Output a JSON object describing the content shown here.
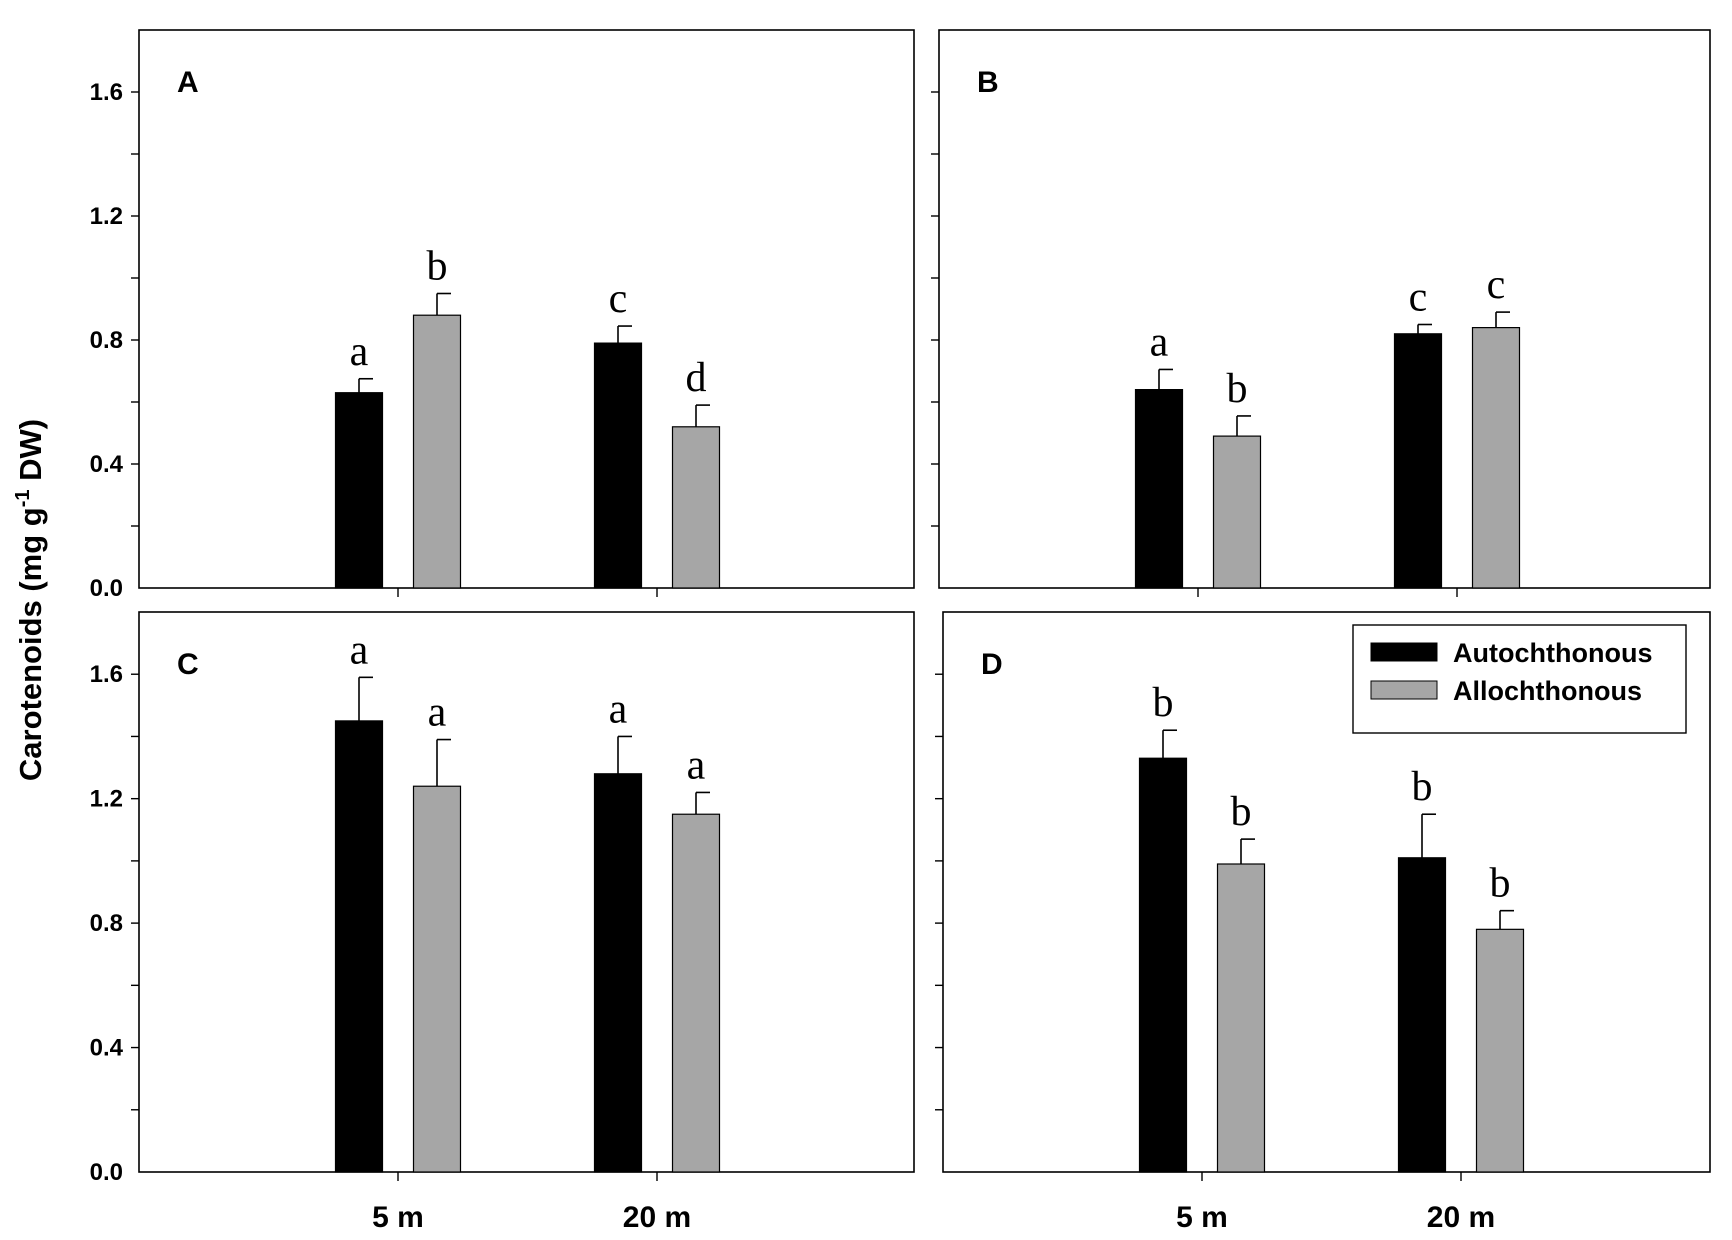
{
  "chart_data": {
    "type": "bar",
    "ylabel": {
      "prefix": "Carotenoids (mg g",
      "superscript": "-1",
      "suffix": " DW)"
    },
    "categories": [
      "5 m",
      "20 m"
    ],
    "ylim": [
      0,
      1.8
    ],
    "yticks": [
      "0.0",
      "0.4",
      "0.8",
      "1.2",
      "1.6"
    ],
    "legend": {
      "placement": "top-right of panel D",
      "entries": [
        "Autochthonous",
        "Allochthonous"
      ]
    },
    "colors": {
      "Autochthonous": "#000000",
      "Allochthonous": "#a6a6a6"
    },
    "panels": [
      {
        "label": "A",
        "series": [
          {
            "name": "Autochthonous",
            "values": [
              0.63,
              0.79
            ],
            "errors": [
              0.045,
              0.055
            ],
            "letters": [
              "a",
              "c"
            ]
          },
          {
            "name": "Allochthonous",
            "values": [
              0.88,
              0.52
            ],
            "errors": [
              0.07,
              0.07
            ],
            "letters": [
              "b",
              "d"
            ]
          }
        ]
      },
      {
        "label": "B",
        "series": [
          {
            "name": "Autochthonous",
            "values": [
              0.64,
              0.82
            ],
            "errors": [
              0.065,
              0.03
            ],
            "letters": [
              "a",
              "c"
            ]
          },
          {
            "name": "Allochthonous",
            "values": [
              0.49,
              0.84
            ],
            "errors": [
              0.065,
              0.05
            ],
            "letters": [
              "b",
              "c"
            ]
          }
        ]
      },
      {
        "label": "C",
        "series": [
          {
            "name": "Autochthonous",
            "values": [
              1.45,
              1.28
            ],
            "errors": [
              0.14,
              0.12
            ],
            "letters": [
              "a",
              "a"
            ]
          },
          {
            "name": "Allochthonous",
            "values": [
              1.24,
              1.15
            ],
            "errors": [
              0.15,
              0.07
            ],
            "letters": [
              "a",
              "a"
            ]
          }
        ]
      },
      {
        "label": "D",
        "series": [
          {
            "name": "Autochthonous",
            "values": [
              1.33,
              1.01
            ],
            "errors": [
              0.09,
              0.14
            ],
            "letters": [
              "b",
              "b"
            ]
          },
          {
            "name": "Allochthonous",
            "values": [
              0.99,
              0.78
            ],
            "errors": [
              0.08,
              0.06
            ],
            "letters": [
              "b",
              "b"
            ]
          }
        ]
      }
    ]
  }
}
